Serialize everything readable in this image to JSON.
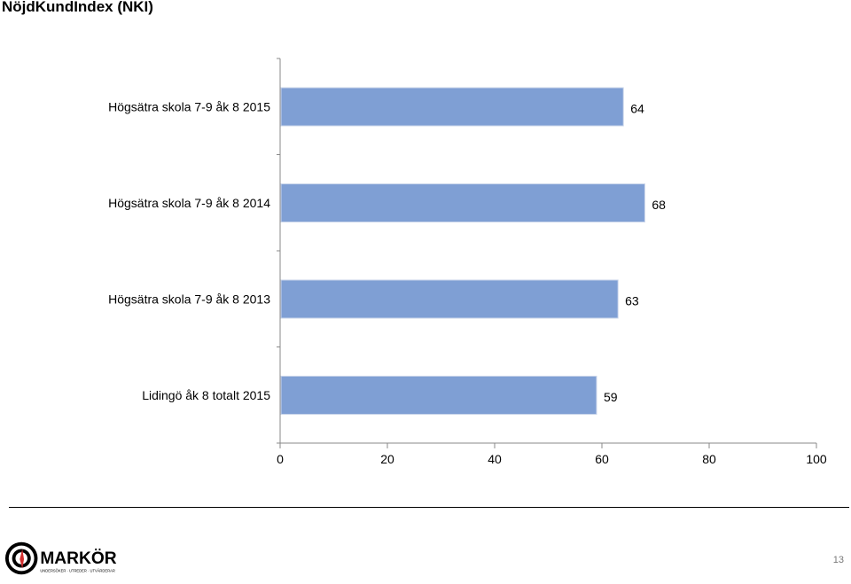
{
  "page": {
    "title": "NöjdKundIndex (NKI)",
    "page_number": "13"
  },
  "logo": {
    "text": "MARKÖR",
    "tagline": "UNDERSÖKER · UTREDER · UTVÄRDERAR"
  },
  "chart_data": {
    "type": "bar",
    "orientation": "horizontal",
    "categories": [
      "Högsätra skola 7-9 åk 8  2015",
      "Högsätra skola 7-9 åk 8  2014",
      "Högsätra skola 7-9 åk 8  2013",
      "Lidingö åk 8 totalt 2015"
    ],
    "values": [
      64,
      68,
      63,
      59
    ],
    "xlim": [
      0,
      100
    ],
    "xticks": [
      0,
      20,
      40,
      60,
      80,
      100
    ],
    "data_labels": true,
    "grid": false,
    "colors": {
      "bar": "#7f9fd4",
      "bar_border": "#c8d4ea",
      "axis": "#888888"
    }
  }
}
